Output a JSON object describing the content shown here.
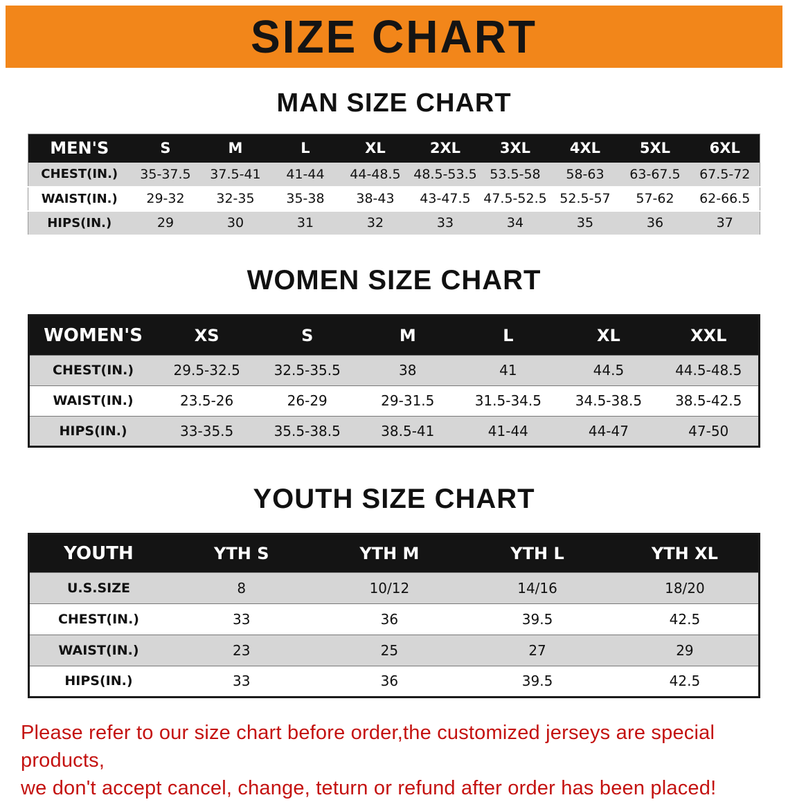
{
  "banner": {
    "title": "SIZE CHART",
    "bg_color": "#f2861a",
    "text_color": "#141414"
  },
  "sections": [
    {
      "title": "MAN SIZE CHART",
      "table": {
        "header": [
          "MEN'S",
          "S",
          "M",
          "L",
          "XL",
          "2XL",
          "3XL",
          "4XL",
          "5XL",
          "6XL"
        ],
        "rows": [
          [
            "CHEST(IN.)",
            "35-37.5",
            "37.5-41",
            "41-44",
            "44-48.5",
            "48.5-53.5",
            "53.5-58",
            "58-63",
            "63-67.5",
            "67.5-72"
          ],
          [
            "WAIST(IN.)",
            "29-32",
            "32-35",
            "35-38",
            "38-43",
            "43-47.5",
            "47.5-52.5",
            "52.5-57",
            "57-62",
            "62-66.5"
          ],
          [
            "HIPS(IN.)",
            "29",
            "30",
            "31",
            "32",
            "33",
            "34",
            "35",
            "36",
            "37"
          ]
        ]
      }
    },
    {
      "title": "WOMEN SIZE CHART",
      "table": {
        "header": [
          "WOMEN'S",
          "XS",
          "S",
          "M",
          "L",
          "XL",
          "XXL"
        ],
        "rows": [
          [
            "CHEST(IN.)",
            "29.5-32.5",
            "32.5-35.5",
            "38",
            "41",
            "44.5",
            "44.5-48.5"
          ],
          [
            "WAIST(IN.)",
            "23.5-26",
            "26-29",
            "29-31.5",
            "31.5-34.5",
            "34.5-38.5",
            "38.5-42.5"
          ],
          [
            "HIPS(IN.)",
            "33-35.5",
            "35.5-38.5",
            "38.5-41",
            "41-44",
            "44-47",
            "47-50"
          ]
        ]
      }
    },
    {
      "title": "YOUTH SIZE CHART",
      "table": {
        "header": [
          "YOUTH",
          "YTH S",
          "YTH M",
          "YTH L",
          "YTH XL"
        ],
        "rows": [
          [
            "U.S.SIZE",
            "8",
            "10/12",
            "14/16",
            "18/20"
          ],
          [
            "CHEST(IN.)",
            "33",
            "36",
            "39.5",
            "42.5"
          ],
          [
            "WAIST(IN.)",
            "23",
            "25",
            "27",
            "29"
          ],
          [
            "HIPS(IN.)",
            "33",
            "36",
            "39.5",
            "42.5"
          ]
        ]
      }
    }
  ],
  "footer": {
    "line1": "Please refer to our size chart before order,the customized jerseys are special products,",
    "line2": "we don't accept cancel, change, teturn or refund after order has been placed!",
    "text_color": "#c41210"
  }
}
